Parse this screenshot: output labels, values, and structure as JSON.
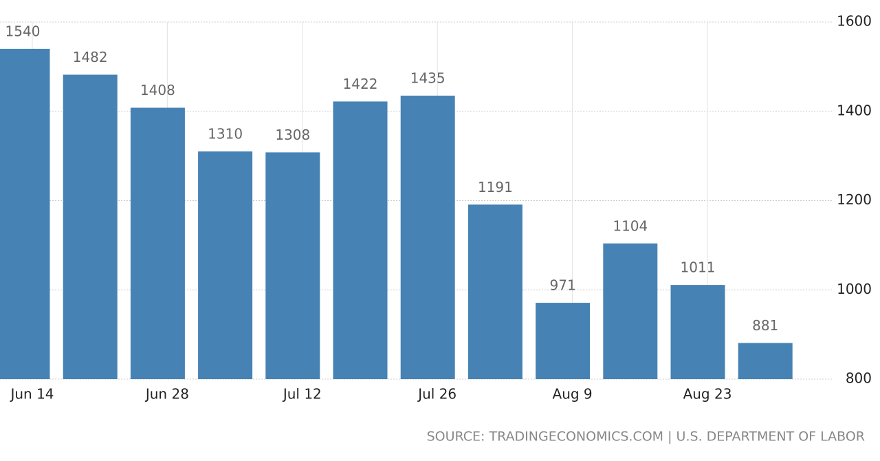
{
  "chart_data": {
    "type": "bar",
    "categories": [
      "Jun 14",
      null,
      "Jun 28",
      null,
      "Jul 12",
      null,
      "Jul 26",
      null,
      "Aug 9",
      null,
      "Aug 23",
      null
    ],
    "values": [
      1540,
      1482,
      1408,
      1310,
      1308,
      1422,
      1435,
      1191,
      971,
      1104,
      1011,
      881
    ],
    "color": "#4682b4",
    "ylim": [
      800,
      1600
    ],
    "yticks": [
      800,
      1000,
      1200,
      1400,
      1600
    ],
    "y_axis_side": "right",
    "grid": true,
    "source": "SOURCE: TRADINGECONOMICS.COM | U.S. DEPARTMENT OF LABOR"
  }
}
